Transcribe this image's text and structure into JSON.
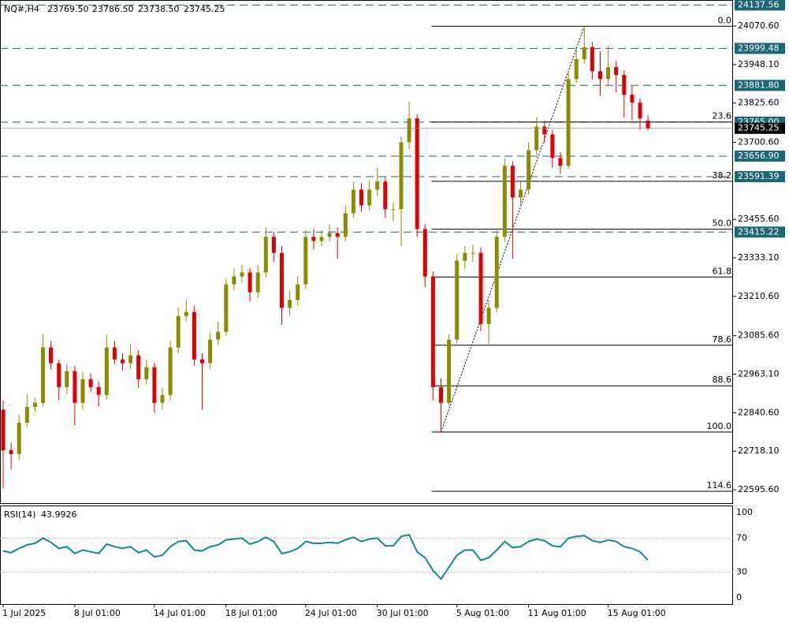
{
  "chart_data": [
    {
      "type": "candlestick",
      "symbol": "NQ#,H4",
      "last_labels": [
        "23769.50",
        "23786.50",
        "23738.50",
        "23745.25"
      ],
      "categories": [
        "1 Jul 2025",
        null,
        null,
        null,
        null,
        null,
        null,
        null,
        null,
        "8 Jul 01:00",
        null,
        null,
        null,
        null,
        null,
        null,
        null,
        null,
        null,
        "14 Jul 01:00",
        null,
        null,
        null,
        null,
        null,
        null,
        null,
        null,
        "18 Jul 01:00",
        null,
        null,
        null,
        null,
        null,
        null,
        null,
        null,
        null,
        "24 Jul 01:00",
        null,
        null,
        null,
        null,
        null,
        null,
        null,
        null,
        "30 Jul 01:00",
        null,
        null,
        null,
        null,
        null,
        null,
        null,
        null,
        null,
        "5 Aug 01:00",
        null,
        null,
        null,
        null,
        null,
        null,
        null,
        null,
        "11 Aug 01:00",
        null,
        null,
        null,
        null,
        null,
        null,
        null,
        null,
        null,
        "15 Aug 01:00",
        null,
        null,
        null,
        null,
        null
      ],
      "open": [
        22850,
        22721,
        22709,
        22809,
        22859,
        22872,
        23048,
        22998,
        22922,
        22973,
        22872,
        22947,
        22922,
        22897,
        23048,
        23010,
        22998,
        23023,
        22947,
        22985,
        22872,
        22897,
        23048,
        23148,
        23161,
        23010,
        22998,
        23073,
        23098,
        23249,
        23274,
        23287,
        23224,
        23287,
        23400,
        23349,
        23174,
        23199,
        23249,
        23400,
        23387,
        23400,
        23412,
        23400,
        23475,
        23550,
        23500,
        23550,
        23576,
        23488,
        23488,
        23701,
        23777,
        23425,
        23274,
        22922,
        22872,
        23073,
        23324,
        23349,
        23349,
        23123,
        23174,
        23400,
        23626,
        23525,
        23550,
        23676,
        23751,
        23726,
        23651,
        23626,
        23902,
        23965,
        24003,
        23927,
        23902,
        23940,
        23915,
        23852,
        23827,
        23769.5
      ],
      "high": [
        22880,
        22745,
        22834,
        22899,
        22887,
        23090,
        23070,
        23010,
        22995,
        22990,
        22970,
        22965,
        22940,
        23088,
        23070,
        23030,
        23060,
        23040,
        23010,
        23000,
        22920,
        23070,
        23175,
        23200,
        23180,
        23030,
        23095,
        23130,
        23265,
        23300,
        23310,
        23300,
        23310,
        23430,
        23415,
        23370,
        23230,
        23275,
        23420,
        23425,
        23420,
        23440,
        23430,
        23500,
        23575,
        23570,
        23580,
        23620,
        23590,
        23510,
        23720,
        23830,
        23790,
        23440,
        23290,
        22950,
        23090,
        23345,
        23370,
        23375,
        23365,
        23200,
        23420,
        23650,
        23640,
        23575,
        23700,
        23780,
        23770,
        23740,
        23670,
        23925,
        24000,
        24070,
        24020,
        23990,
        24008,
        23960,
        23930,
        23880,
        23840,
        23786.5
      ],
      "low": [
        22600,
        22660,
        22690,
        22794,
        22844,
        22860,
        22978,
        22880,
        22900,
        22800,
        22850,
        22905,
        22860,
        22882,
        22995,
        22975,
        22980,
        22920,
        22930,
        22840,
        22850,
        22880,
        23030,
        23130,
        22990,
        22850,
        22980,
        23055,
        23085,
        23230,
        23255,
        23195,
        23205,
        23270,
        23320,
        23120,
        23150,
        23180,
        23235,
        23360,
        23370,
        23385,
        23330,
        23385,
        23460,
        23480,
        23485,
        23530,
        23460,
        23450,
        23370,
        23680,
        23400,
        23240,
        22880,
        22779,
        22860,
        23060,
        23300,
        23320,
        23100,
        23060,
        23160,
        23385,
        23330,
        23500,
        23535,
        23660,
        23700,
        23620,
        23600,
        23615,
        23890,
        23950,
        23900,
        23850,
        23880,
        23860,
        23780,
        23770,
        23740,
        23738.5
      ],
      "close": [
        22721,
        22709,
        22809,
        22859,
        22872,
        23048,
        22998,
        22922,
        22973,
        22872,
        22947,
        22922,
        22897,
        23048,
        23010,
        22998,
        23023,
        22947,
        22985,
        22872,
        22897,
        23048,
        23148,
        23161,
        23010,
        22998,
        23073,
        23098,
        23249,
        23274,
        23287,
        23224,
        23287,
        23400,
        23349,
        23174,
        23199,
        23249,
        23400,
        23387,
        23400,
        23412,
        23400,
        23475,
        23550,
        23500,
        23550,
        23576,
        23488,
        23488,
        23701,
        23777,
        23425,
        23274,
        22922,
        22872,
        23073,
        23324,
        23349,
        23349,
        23123,
        23174,
        23400,
        23626,
        23525,
        23550,
        23676,
        23751,
        23726,
        23651,
        23626,
        23902,
        23965,
        24003,
        23927,
        23902,
        23940,
        23915,
        23852,
        23827,
        23777,
        23745.25
      ],
      "up_color": "#8b8b00",
      "down_color": "#e00000",
      "ylim": [
        22550.4,
        24153.5
      ],
      "yticks": [
        {
          "value": 22595.6,
          "label": "22595.60"
        },
        {
          "value": 22718.1,
          "label": "22718.10"
        },
        {
          "value": 22840.6,
          "label": "22840.60"
        },
        {
          "value": 22963.1,
          "label": "22963.10"
        },
        {
          "value": 23085.6,
          "label": "23085.60"
        },
        {
          "value": 23210.6,
          "label": "23210.60"
        },
        {
          "value": 23333.1,
          "label": "23333.10"
        },
        {
          "value": 23455.6,
          "label": "23455.60"
        },
        {
          "value": 23700.6,
          "label": "23700.60"
        },
        {
          "value": 23825.6,
          "label": "23825.60"
        },
        {
          "value": 23948.1,
          "label": "23948.10"
        },
        {
          "value": 24070.6,
          "label": "24070.60"
        }
      ],
      "levels": [
        24137.56,
        23999.48,
        {
          "value": 23881.8,
          "label": "23881.80"
        },
        {
          "value": 23765,
          "label": "23765.00"
        },
        {
          "value": 23656.9,
          "label": "23656.90"
        },
        23591.39,
        23415.22
      ],
      "level_color": "#1d6676",
      "fib": {
        "low": 22779,
        "high": 24070,
        "start": 55,
        "end": 73,
        "levels": [
          {
            "value": 0,
            "label": "0.0"
          },
          23.6,
          38.2,
          {
            "value": 50,
            "label": "50.0"
          },
          61.8,
          78.6,
          88.6,
          {
            "value": 100,
            "label": "100.0"
          },
          114.6
        ]
      }
    },
    {
      "type": "line",
      "title": "RSI(14)",
      "series": [
        {
          "color": "#0e8a8a",
          "values": [
            55,
            53,
            58,
            62,
            64,
            70,
            65,
            58,
            60,
            52,
            56,
            54,
            52,
            63,
            60,
            58,
            60,
            53,
            56,
            48,
            50,
            60,
            66,
            67,
            56,
            55,
            60,
            62,
            68,
            69,
            70,
            63,
            66,
            71,
            66,
            52,
            54,
            58,
            66,
            64,
            64,
            65,
            64,
            68,
            71,
            66,
            69,
            70,
            61,
            61,
            72,
            74,
            54,
            47,
            32,
            22,
            36,
            50,
            56,
            56,
            44,
            47,
            56,
            66,
            59,
            60,
            66,
            69,
            67,
            61,
            60,
            70,
            72,
            73,
            67,
            65,
            68,
            66,
            60,
            58,
            54,
            43.9926
          ]
        }
      ],
      "ylim": [
        0,
        100
      ],
      "yticks": [
        0,
        30,
        70,
        100
      ]
    }
  ]
}
